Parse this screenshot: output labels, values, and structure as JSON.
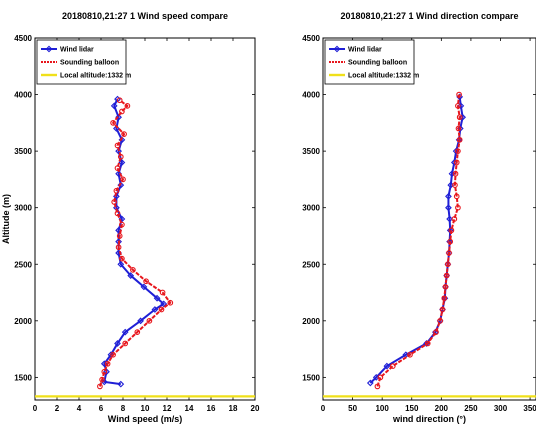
{
  "chart_data": [
    {
      "type": "line",
      "title": "20180810,21:27 1 Wind speed compare",
      "xlabel": "Wind speed (m/s)",
      "ylabel": "Altitude (m)",
      "xlim": [
        0,
        20
      ],
      "ylim": [
        1300,
        4500
      ],
      "xticks": [
        0,
        2,
        4,
        6,
        8,
        10,
        12,
        14,
        16,
        18,
        20
      ],
      "yticks": [
        1500,
        2000,
        2500,
        3000,
        3500,
        4000,
        4500
      ],
      "grid": false,
      "legend": "top-left",
      "series": [
        {
          "name": "Wind lidar",
          "color": "#1f1fd6",
          "marker": "diamond",
          "points": [
            [
              7.8,
              1440
            ],
            [
              6.3,
              1460
            ],
            [
              6.5,
              1550
            ],
            [
              6.3,
              1620
            ],
            [
              6.9,
              1700
            ],
            [
              7.5,
              1800
            ],
            [
              8.2,
              1900
            ],
            [
              9.6,
              2000
            ],
            [
              10.9,
              2100
            ],
            [
              11.7,
              2150
            ],
            [
              11.1,
              2200
            ],
            [
              9.9,
              2300
            ],
            [
              8.7,
              2400
            ],
            [
              7.8,
              2500
            ],
            [
              7.6,
              2600
            ],
            [
              7.6,
              2700
            ],
            [
              7.6,
              2800
            ],
            [
              7.9,
              2900
            ],
            [
              7.4,
              3000
            ],
            [
              7.4,
              3100
            ],
            [
              7.8,
              3200
            ],
            [
              7.6,
              3300
            ],
            [
              7.9,
              3400
            ],
            [
              7.6,
              3500
            ],
            [
              7.9,
              3600
            ],
            [
              7.4,
              3700
            ],
            [
              7.6,
              3800
            ],
            [
              7.2,
              3900
            ],
            [
              7.5,
              3960
            ]
          ]
        },
        {
          "name": "Sounding balloon",
          "color": "#e8161c",
          "marker": "circle",
          "points": [
            [
              5.9,
              1420
            ],
            [
              6.1,
              1480
            ],
            [
              6.3,
              1550
            ],
            [
              6.6,
              1620
            ],
            [
              7.1,
              1700
            ],
            [
              8.2,
              1800
            ],
            [
              9.3,
              1900
            ],
            [
              10.4,
              2000
            ],
            [
              11.5,
              2100
            ],
            [
              12.3,
              2160
            ],
            [
              11.6,
              2250
            ],
            [
              10.1,
              2350
            ],
            [
              8.9,
              2450
            ],
            [
              7.9,
              2550
            ],
            [
              7.6,
              2650
            ],
            [
              7.7,
              2750
            ],
            [
              7.9,
              2850
            ],
            [
              7.5,
              2950
            ],
            [
              7.2,
              3050
            ],
            [
              7.4,
              3150
            ],
            [
              8.0,
              3250
            ],
            [
              7.5,
              3350
            ],
            [
              7.8,
              3450
            ],
            [
              7.5,
              3550
            ],
            [
              8.1,
              3650
            ],
            [
              7.1,
              3750
            ],
            [
              7.9,
              3850
            ],
            [
              8.4,
              3900
            ],
            [
              7.7,
              3950
            ]
          ]
        },
        {
          "name": "Local altitude:1332 m",
          "color": "#f0e01a",
          "marker": "none",
          "points": [
            [
              0,
              1332
            ],
            [
              20,
              1332
            ]
          ]
        }
      ]
    },
    {
      "type": "line",
      "title": "20180810,21:27 1 Wind direction compare",
      "xlabel": "wind direction (°)",
      "ylabel": "",
      "xlim": [
        0,
        360
      ],
      "ylim": [
        1300,
        4500
      ],
      "xticks": [
        0,
        50,
        100,
        150,
        200,
        250,
        300,
        350
      ],
      "yticks": [
        1500,
        2000,
        2500,
        3000,
        3500,
        4000,
        4500
      ],
      "grid": false,
      "legend": "top-left",
      "series": [
        {
          "name": "Wind lidar",
          "color": "#1f1fd6",
          "marker": "diamond",
          "points": [
            [
              80,
              1450
            ],
            [
              90,
              1500
            ],
            [
              108,
              1600
            ],
            [
              140,
              1700
            ],
            [
              175,
              1800
            ],
            [
              190,
              1900
            ],
            [
              198,
              2000
            ],
            [
              202,
              2100
            ],
            [
              206,
              2200
            ],
            [
              207,
              2300
            ],
            [
              209,
              2400
            ],
            [
              211,
              2500
            ],
            [
              213,
              2600
            ],
            [
              214,
              2700
            ],
            [
              215,
              2800
            ],
            [
              214,
              2900
            ],
            [
              212,
              3000
            ],
            [
              212,
              3100
            ],
            [
              216,
              3200
            ],
            [
              218,
              3300
            ],
            [
              222,
              3400
            ],
            [
              225,
              3500
            ],
            [
              230,
              3600
            ],
            [
              232,
              3700
            ],
            [
              236,
              3800
            ],
            [
              233,
              3900
            ],
            [
              231,
              3980
            ]
          ]
        },
        {
          "name": "Sounding balloon",
          "color": "#e8161c",
          "marker": "circle",
          "points": [
            [
              92,
              1420
            ],
            [
              97,
              1500
            ],
            [
              118,
              1600
            ],
            [
              147,
              1700
            ],
            [
              177,
              1800
            ],
            [
              191,
              1900
            ],
            [
              198,
              2000
            ],
            [
              202,
              2100
            ],
            [
              205,
              2200
            ],
            [
              207,
              2300
            ],
            [
              209,
              2400
            ],
            [
              211,
              2500
            ],
            [
              213,
              2600
            ],
            [
              215,
              2700
            ],
            [
              217,
              2800
            ],
            [
              222,
              2900
            ],
            [
              228,
              3000
            ],
            [
              226,
              3100
            ],
            [
              223,
              3200
            ],
            [
              224,
              3300
            ],
            [
              226,
              3400
            ],
            [
              228,
              3500
            ],
            [
              231,
              3600
            ],
            [
              229,
              3700
            ],
            [
              231,
              3800
            ],
            [
              228,
              3900
            ],
            [
              230,
              4000
            ]
          ]
        },
        {
          "name": "Local altitude:1332 m",
          "color": "#f0e01a",
          "marker": "none",
          "points": [
            [
              0,
              1332
            ],
            [
              360,
              1332
            ]
          ]
        }
      ]
    }
  ]
}
